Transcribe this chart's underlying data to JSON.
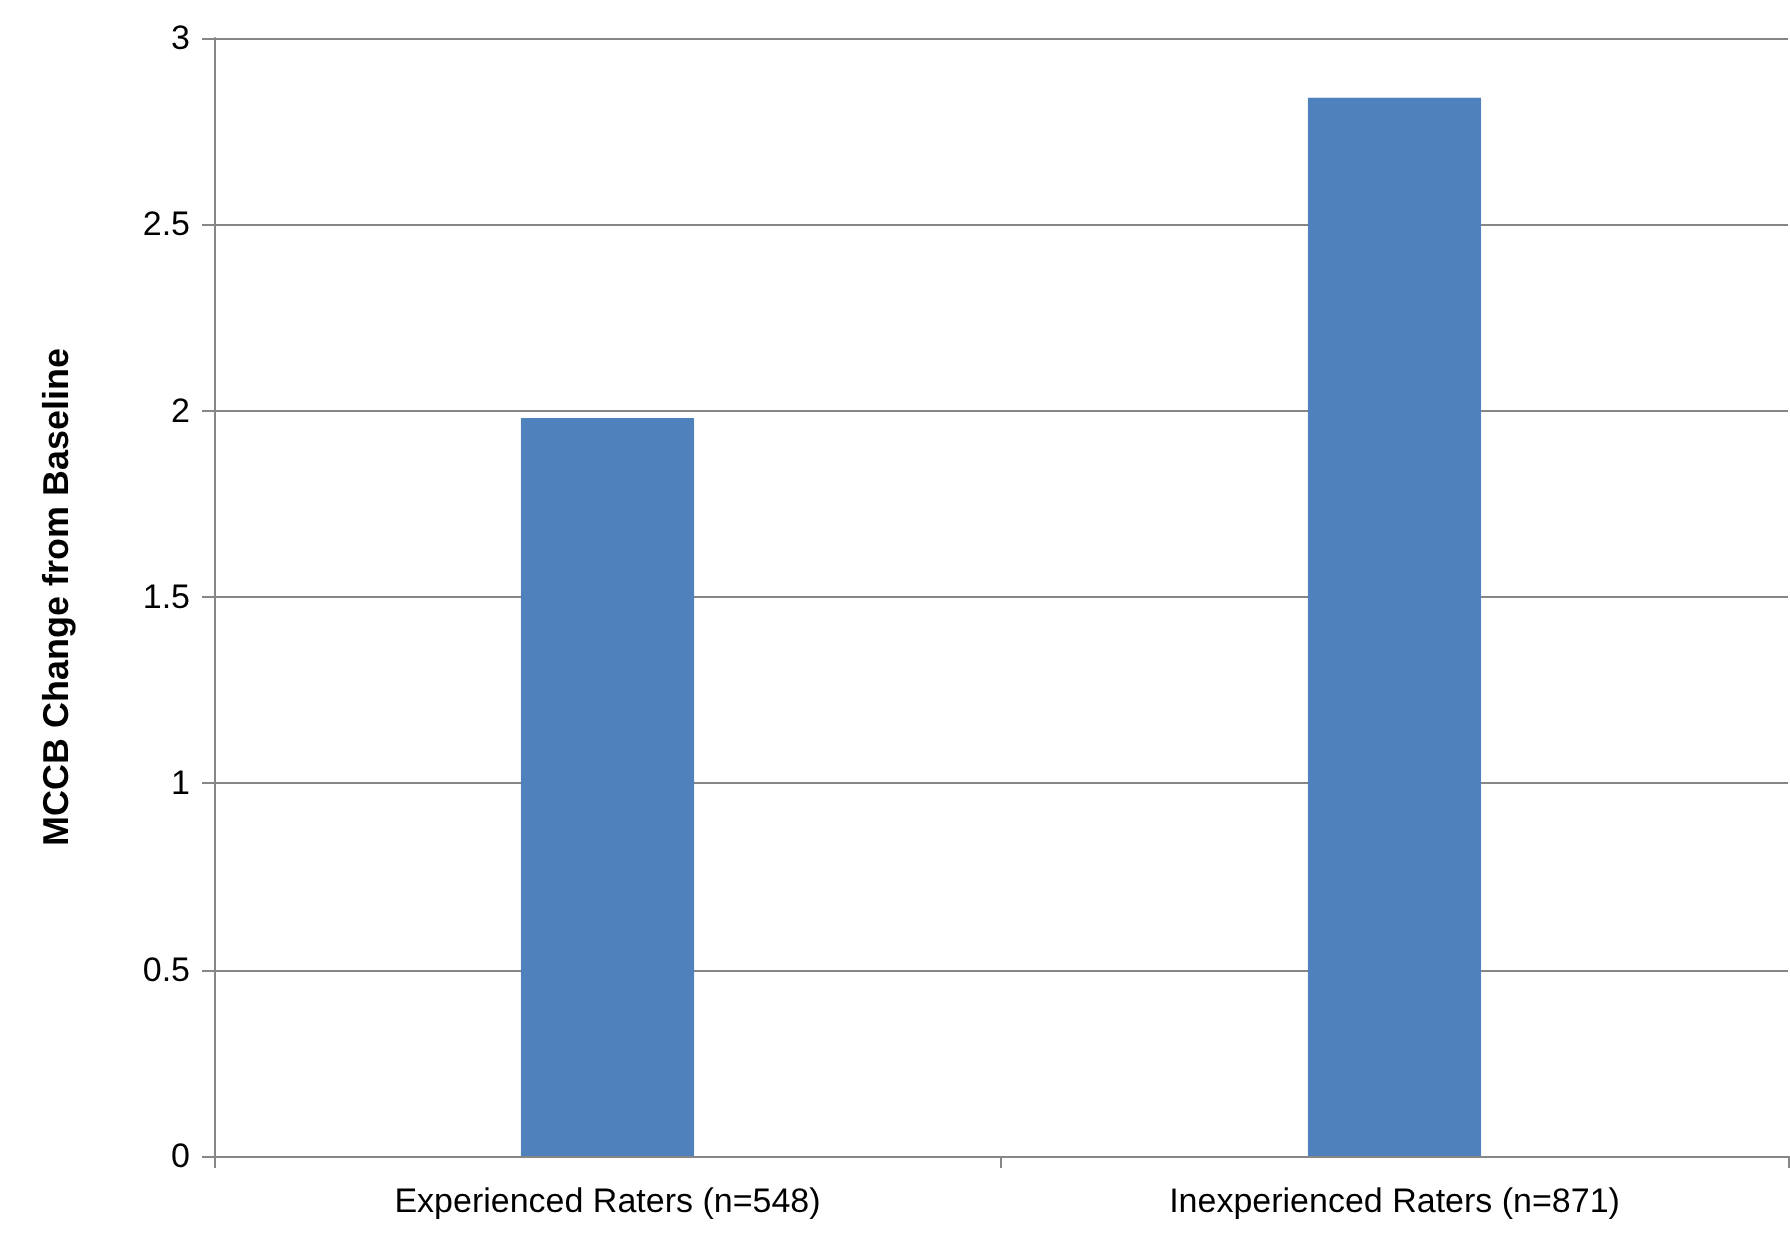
{
  "chart_data": {
    "type": "bar",
    "ylabel": "MCCB Change from Baseline",
    "categories": [
      "Experienced Raters (n=548)",
      "Inexperienced Raters (n=871)"
    ],
    "values": [
      1.98,
      2.84
    ],
    "color": "#4f81bd",
    "ylim": [
      0,
      3
    ],
    "yticks": [
      0,
      0.5,
      1,
      1.5,
      2,
      2.5,
      3
    ],
    "grid": "y"
  }
}
